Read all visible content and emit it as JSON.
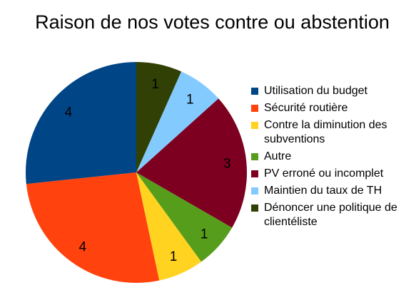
{
  "chart_data": {
    "type": "pie",
    "title": "Raison de nos votes contre ou abstention",
    "categories": [
      "Utilisation du budget",
      "Sécurité routière",
      "Contre la diminution des subventions",
      "Autre",
      "PV erroné ou incomplet",
      "Maintien du taux de TH",
      "Dénoncer une politique de clientéliste"
    ],
    "values": [
      4,
      4,
      1,
      1,
      3,
      1,
      1
    ],
    "colors": [
      "#004586",
      "#ff420e",
      "#ffd320",
      "#579d1c",
      "#7e0021",
      "#83caff",
      "#314004"
    ],
    "legend_position": "right",
    "start_angle_deg": 0,
    "direction": "counterclockwise"
  }
}
